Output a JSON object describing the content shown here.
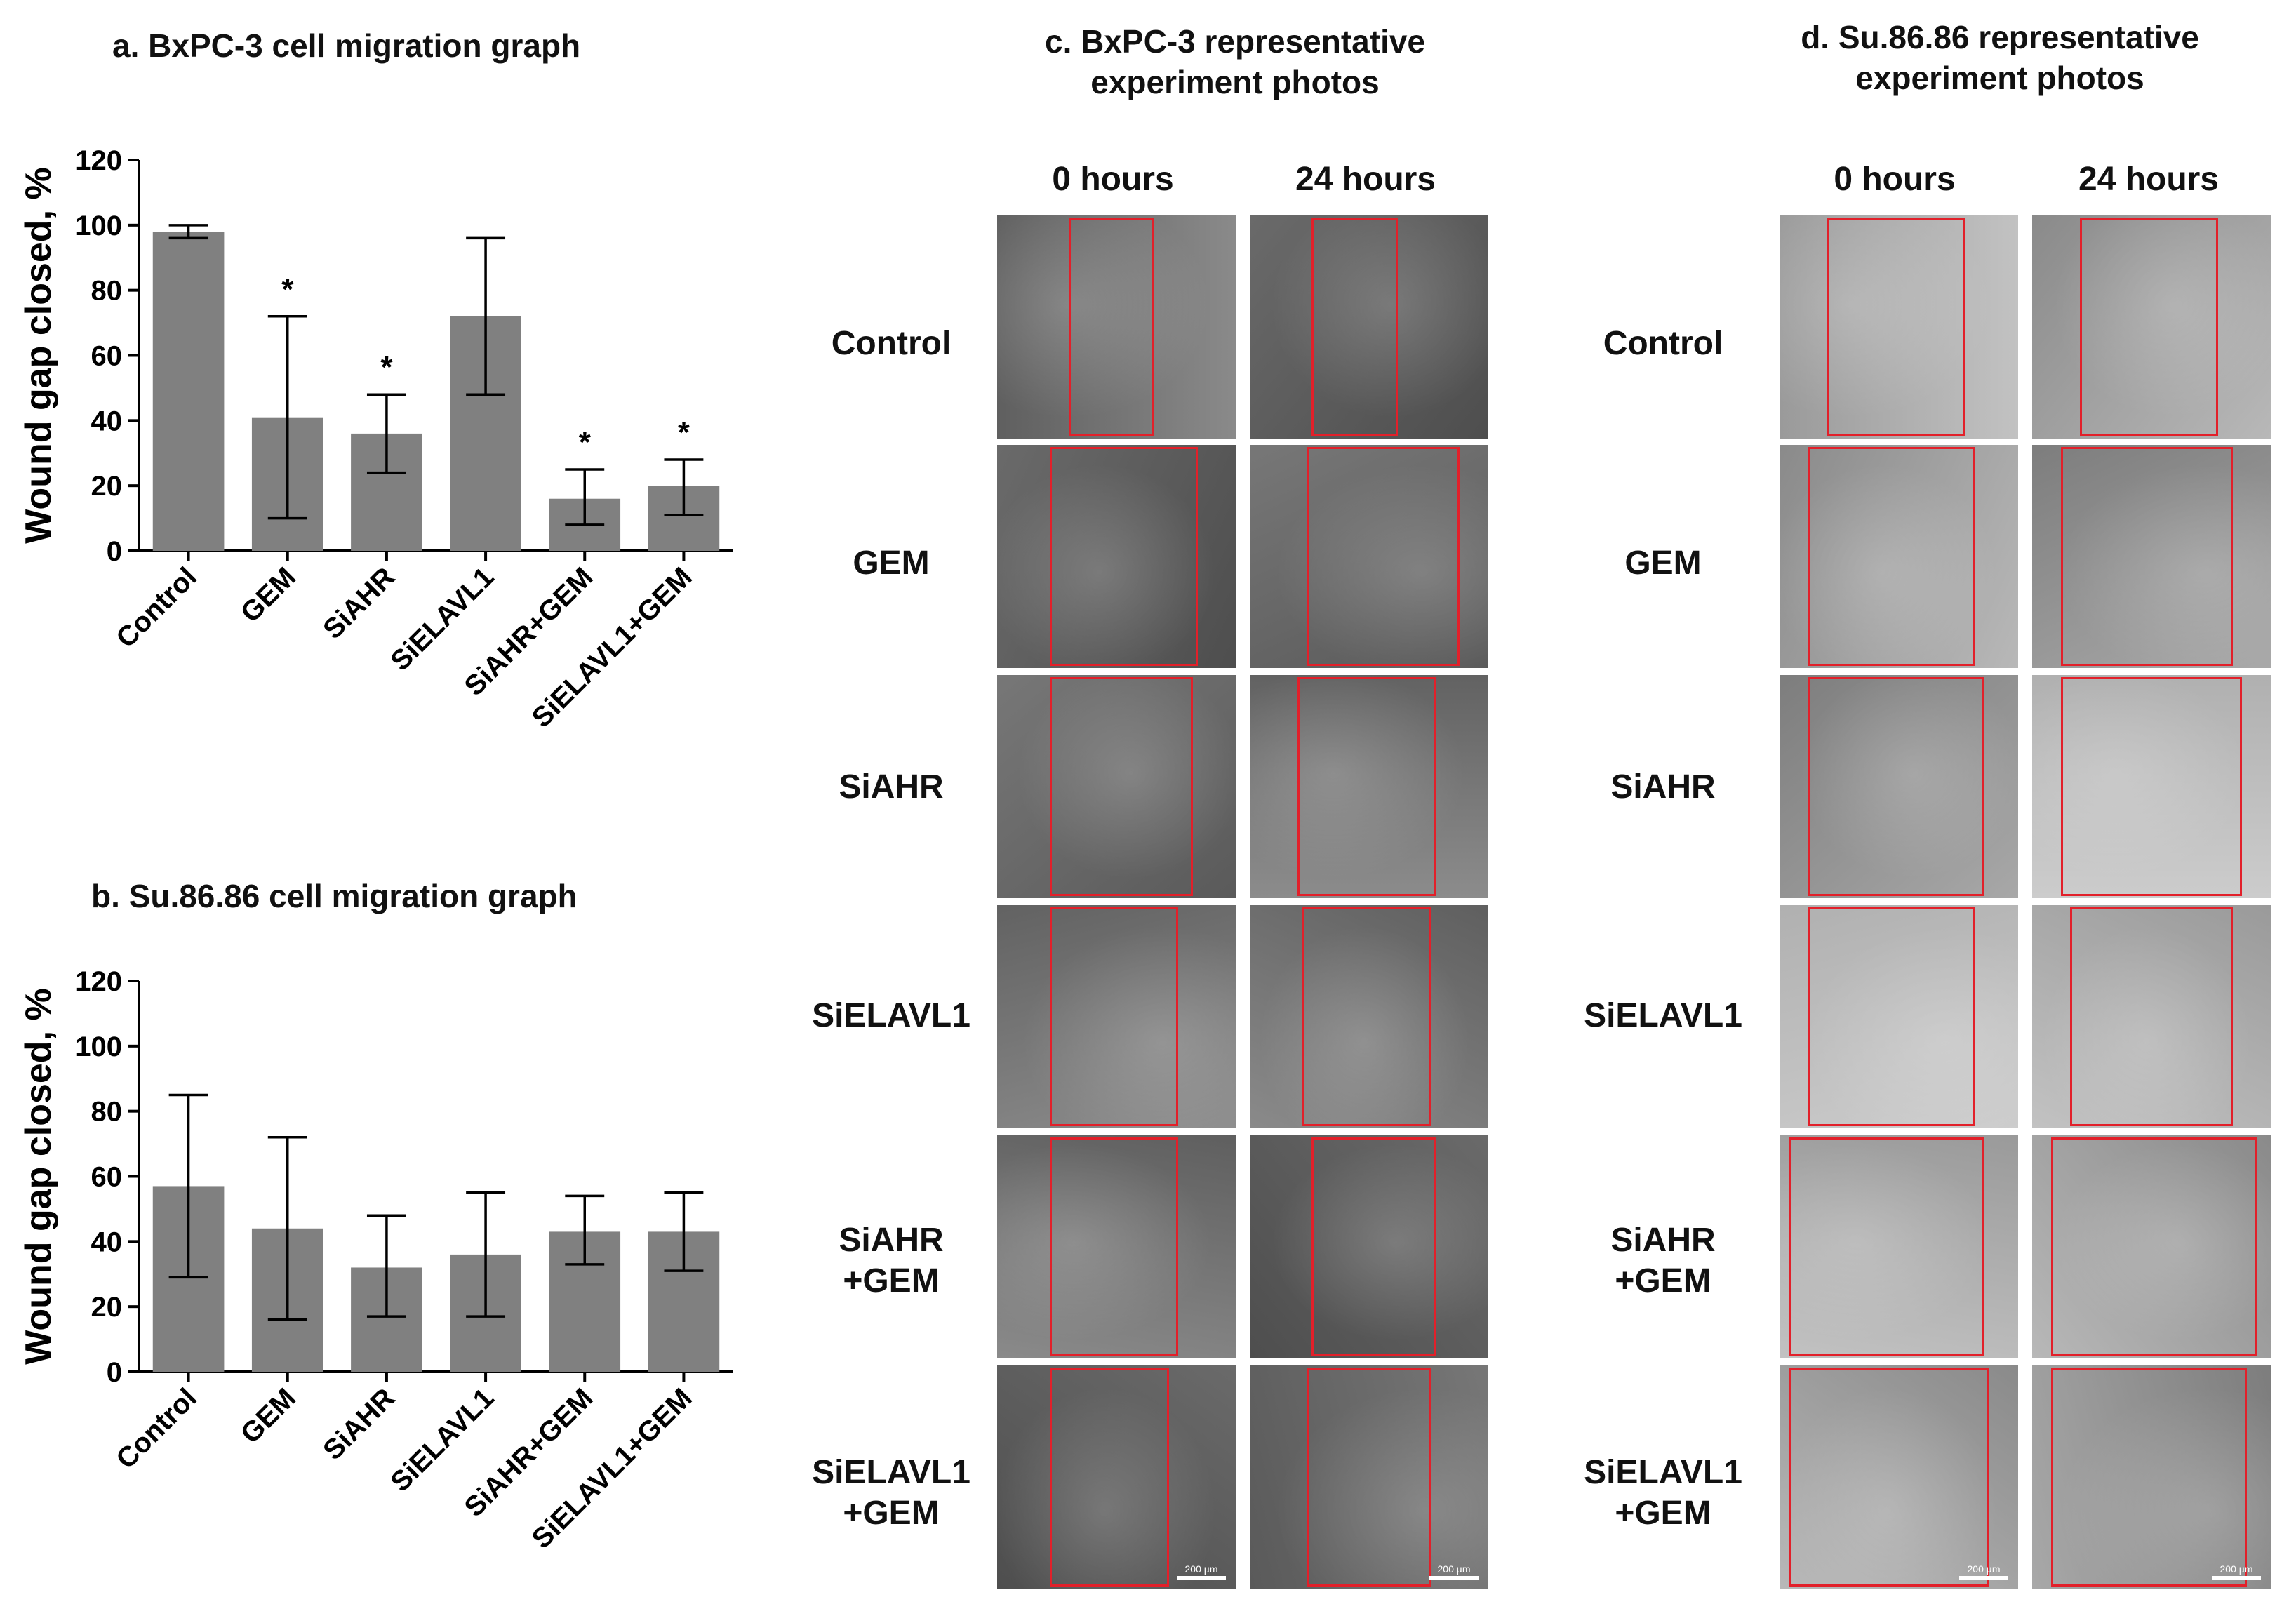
{
  "colors": {
    "bar": "#808080",
    "box": "#e2202a",
    "axis": "#000000"
  },
  "chart_data": [
    {
      "type": "bar",
      "title": "a. BxPC-3 cell migration graph",
      "ylabel": "Wound gap closed,  %",
      "xlabel": "",
      "ylim": [
        0,
        120
      ],
      "yticks": [
        "0",
        "20",
        "40",
        "60",
        "80",
        "100",
        "120"
      ],
      "categories": [
        "Control",
        "GEM",
        "SiAHR",
        "SiELAVL1",
        "SiAHR+GEM",
        "SiELAVL1+GEM"
      ],
      "values": [
        98,
        41,
        36,
        72,
        16,
        20
      ],
      "err_low": [
        96,
        10,
        24,
        48,
        8,
        11
      ],
      "err_high": [
        100,
        72,
        48,
        96,
        25,
        28
      ],
      "significance": [
        "",
        "*",
        "*",
        "",
        "*",
        "*"
      ]
    },
    {
      "type": "bar",
      "title": "b.  Su.86.86 cell migration graph",
      "ylabel": "Wound gap closed,  %",
      "xlabel": "",
      "ylim": [
        0,
        120
      ],
      "yticks": [
        "0",
        "20",
        "40",
        "60",
        "80",
        "100",
        "120"
      ],
      "categories": [
        "Control",
        "GEM",
        "SiAHR",
        "SiELAVL1",
        "SiAHR+GEM",
        "SiELAVL1+GEM"
      ],
      "values": [
        57,
        44,
        32,
        36,
        43,
        43
      ],
      "err_low": [
        29,
        16,
        17,
        17,
        33,
        31
      ],
      "err_high": [
        85,
        72,
        48,
        55,
        54,
        55
      ],
      "significance": [
        "",
        "",
        "",
        "",
        "",
        ""
      ]
    }
  ],
  "photos": {
    "c": {
      "title_line1": "c. BxPC-3 representative",
      "title_line2": "experiment photos",
      "col0": "0 hours",
      "col1": "24 hours",
      "scale_label": "200 µm"
    },
    "d": {
      "title_line1": "d. Su.86.86 representative",
      "title_line2": "experiment photos",
      "col0": "0 hours",
      "col1": "24 hours",
      "scale_label": "200 µm"
    },
    "rows": [
      [
        "Control",
        ""
      ],
      [
        "GEM",
        ""
      ],
      [
        "SiAHR",
        ""
      ],
      [
        "SiELAVL1",
        ""
      ],
      [
        "SiAHR",
        "+GEM"
      ],
      [
        "SiELAVL1",
        "+GEM"
      ]
    ]
  }
}
